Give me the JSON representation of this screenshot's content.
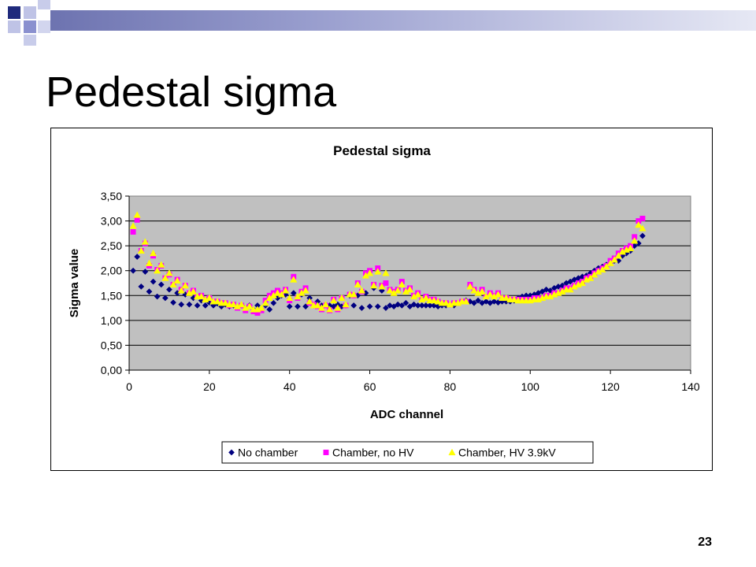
{
  "slide": {
    "title": "Pedestal sigma",
    "page_number": "23"
  },
  "chart_data": {
    "type": "scatter",
    "title": "Pedestal sigma",
    "xlabel": "ADC channel",
    "ylabel": "Sigma value",
    "xlim": [
      0,
      140
    ],
    "ylim": [
      0,
      3.5
    ],
    "x_ticks": [
      "0",
      "20",
      "40",
      "60",
      "80",
      "100",
      "120",
      "140"
    ],
    "y_ticks": [
      "0,00",
      "0,50",
      "1,00",
      "1,50",
      "2,00",
      "2,50",
      "3,00",
      "3,50"
    ],
    "plot_background": "#C0C0C0",
    "grid": "horizontal",
    "legend_position": "bottom",
    "series": [
      {
        "name": "No chamber",
        "marker": "diamond",
        "color": "#000080",
        "x": [
          1,
          2,
          3,
          4,
          5,
          6,
          7,
          8,
          9,
          10,
          11,
          12,
          13,
          14,
          15,
          16,
          17,
          18,
          19,
          20,
          21,
          22,
          23,
          24,
          25,
          26,
          27,
          28,
          29,
          30,
          31,
          32,
          33,
          34,
          35,
          36,
          37,
          38,
          39,
          40,
          41,
          42,
          43,
          44,
          45,
          46,
          47,
          48,
          49,
          50,
          51,
          52,
          53,
          54,
          55,
          56,
          57,
          58,
          59,
          60,
          61,
          62,
          63,
          64,
          65,
          66,
          67,
          68,
          69,
          70,
          71,
          72,
          73,
          74,
          75,
          76,
          77,
          78,
          79,
          80,
          81,
          82,
          83,
          84,
          85,
          86,
          87,
          88,
          89,
          90,
          91,
          92,
          93,
          94,
          95,
          96,
          97,
          98,
          99,
          100,
          101,
          102,
          103,
          104,
          105,
          106,
          107,
          108,
          109,
          110,
          111,
          112,
          113,
          114,
          115,
          116,
          117,
          118,
          119,
          120,
          121,
          122,
          123,
          124,
          125,
          126,
          127,
          128
        ],
        "y": [
          2.0,
          2.28,
          1.68,
          1.98,
          1.58,
          1.78,
          1.48,
          1.72,
          1.45,
          1.62,
          1.36,
          1.55,
          1.32,
          1.52,
          1.32,
          1.45,
          1.3,
          1.4,
          1.3,
          1.36,
          1.3,
          1.34,
          1.28,
          1.32,
          1.28,
          1.3,
          1.26,
          1.3,
          1.25,
          1.3,
          1.22,
          1.3,
          1.22,
          1.3,
          1.22,
          1.35,
          1.45,
          1.5,
          1.52,
          1.28,
          1.55,
          1.28,
          1.52,
          1.28,
          1.45,
          1.3,
          1.38,
          1.3,
          1.32,
          1.3,
          1.28,
          1.32,
          1.28,
          1.3,
          1.5,
          1.3,
          1.5,
          1.25,
          1.55,
          1.28,
          1.65,
          1.28,
          1.6,
          1.25,
          1.3,
          1.28,
          1.32,
          1.3,
          1.35,
          1.28,
          1.32,
          1.3,
          1.3,
          1.3,
          1.3,
          1.3,
          1.28,
          1.3,
          1.3,
          1.32,
          1.3,
          1.35,
          1.38,
          1.4,
          1.38,
          1.35,
          1.4,
          1.35,
          1.38,
          1.35,
          1.38,
          1.36,
          1.38,
          1.38,
          1.38,
          1.4,
          1.45,
          1.48,
          1.5,
          1.5,
          1.52,
          1.55,
          1.58,
          1.62,
          1.6,
          1.65,
          1.68,
          1.7,
          1.75,
          1.78,
          1.82,
          1.85,
          1.88,
          1.9,
          1.95,
          2.0,
          2.05,
          2.08,
          2.12,
          2.15,
          2.2,
          2.2,
          2.3,
          2.35,
          2.4,
          2.5,
          2.55,
          2.7
        ]
      },
      {
        "name": "Chamber, no HV",
        "marker": "square",
        "color": "#FF00FF",
        "x": [
          1,
          2,
          3,
          4,
          5,
          6,
          7,
          8,
          9,
          10,
          11,
          12,
          13,
          14,
          15,
          16,
          17,
          18,
          19,
          20,
          21,
          22,
          23,
          24,
          25,
          26,
          27,
          28,
          29,
          30,
          31,
          32,
          33,
          34,
          35,
          36,
          37,
          38,
          39,
          40,
          41,
          42,
          43,
          44,
          45,
          46,
          47,
          48,
          49,
          50,
          51,
          52,
          53,
          54,
          55,
          56,
          57,
          58,
          59,
          60,
          61,
          62,
          63,
          64,
          65,
          66,
          67,
          68,
          69,
          70,
          71,
          72,
          73,
          74,
          75,
          76,
          77,
          78,
          79,
          80,
          81,
          82,
          83,
          84,
          85,
          86,
          87,
          88,
          89,
          90,
          91,
          92,
          93,
          94,
          95,
          96,
          97,
          98,
          99,
          100,
          101,
          102,
          103,
          104,
          105,
          106,
          107,
          108,
          109,
          110,
          111,
          112,
          113,
          114,
          115,
          116,
          117,
          118,
          119,
          120,
          121,
          122,
          123,
          124,
          125,
          126,
          127,
          128
        ],
        "y": [
          2.78,
          3.02,
          2.4,
          2.55,
          2.1,
          2.3,
          2.02,
          2.1,
          1.85,
          1.92,
          1.72,
          1.82,
          1.62,
          1.7,
          1.55,
          1.6,
          1.48,
          1.5,
          1.42,
          1.45,
          1.38,
          1.38,
          1.35,
          1.35,
          1.3,
          1.32,
          1.25,
          1.3,
          1.2,
          1.28,
          1.18,
          1.15,
          1.2,
          1.4,
          1.5,
          1.55,
          1.6,
          1.55,
          1.62,
          1.4,
          1.88,
          1.45,
          1.58,
          1.65,
          1.35,
          1.32,
          1.28,
          1.22,
          1.3,
          1.2,
          1.42,
          1.22,
          1.45,
          1.3,
          1.52,
          1.5,
          1.75,
          1.58,
          1.95,
          2.0,
          1.72,
          2.05,
          1.7,
          1.75,
          1.62,
          1.58,
          1.62,
          1.78,
          1.6,
          1.65,
          1.5,
          1.55,
          1.42,
          1.48,
          1.42,
          1.42,
          1.38,
          1.35,
          1.35,
          1.32,
          1.35,
          1.35,
          1.38,
          1.38,
          1.72,
          1.62,
          1.55,
          1.62,
          1.48,
          1.55,
          1.5,
          1.55,
          1.45,
          1.45,
          1.42,
          1.42,
          1.42,
          1.42,
          1.42,
          1.42,
          1.45,
          1.45,
          1.45,
          1.5,
          1.5,
          1.55,
          1.55,
          1.6,
          1.65,
          1.65,
          1.7,
          1.75,
          1.78,
          1.85,
          1.88,
          1.95,
          2.0,
          2.05,
          2.1,
          2.2,
          2.25,
          2.35,
          2.4,
          2.45,
          2.5,
          2.68,
          3.0,
          3.05
        ]
      },
      {
        "name": "Chamber, HV 3.9kV",
        "marker": "triangle",
        "color": "#FFFF00",
        "x": [
          1,
          2,
          3,
          4,
          5,
          6,
          7,
          8,
          9,
          10,
          11,
          12,
          13,
          14,
          15,
          16,
          17,
          18,
          19,
          20,
          21,
          22,
          23,
          24,
          25,
          26,
          27,
          28,
          29,
          30,
          31,
          32,
          33,
          34,
          35,
          36,
          37,
          38,
          39,
          40,
          41,
          42,
          43,
          44,
          45,
          46,
          47,
          48,
          49,
          50,
          51,
          52,
          53,
          54,
          55,
          56,
          57,
          58,
          59,
          60,
          61,
          62,
          63,
          64,
          65,
          66,
          67,
          68,
          69,
          70,
          71,
          72,
          73,
          74,
          75,
          76,
          77,
          78,
          79,
          80,
          81,
          82,
          83,
          84,
          85,
          86,
          87,
          88,
          89,
          90,
          91,
          92,
          93,
          94,
          95,
          96,
          97,
          98,
          99,
          100,
          101,
          102,
          103,
          104,
          105,
          106,
          107,
          108,
          109,
          110,
          111,
          112,
          113,
          114,
          115,
          116,
          117,
          118,
          119,
          120,
          121,
          122,
          123,
          124,
          125,
          126,
          127,
          128
        ],
        "y": [
          2.9,
          3.12,
          2.4,
          2.58,
          2.15,
          2.35,
          2.0,
          2.12,
          1.85,
          1.95,
          1.72,
          1.8,
          1.6,
          1.7,
          1.55,
          1.58,
          1.48,
          1.48,
          1.42,
          1.45,
          1.38,
          1.38,
          1.35,
          1.35,
          1.32,
          1.32,
          1.28,
          1.32,
          1.25,
          1.28,
          1.22,
          1.22,
          1.25,
          1.35,
          1.45,
          1.5,
          1.55,
          1.52,
          1.6,
          1.45,
          1.82,
          1.48,
          1.55,
          1.6,
          1.38,
          1.3,
          1.3,
          1.25,
          1.32,
          1.22,
          1.4,
          1.25,
          1.45,
          1.32,
          1.52,
          1.52,
          1.72,
          1.6,
          1.9,
          1.95,
          1.7,
          1.98,
          1.68,
          1.95,
          1.6,
          1.55,
          1.6,
          1.72,
          1.58,
          1.62,
          1.48,
          1.52,
          1.42,
          1.45,
          1.4,
          1.4,
          1.38,
          1.35,
          1.35,
          1.32,
          1.35,
          1.35,
          1.38,
          1.38,
          1.68,
          1.6,
          1.55,
          1.58,
          1.48,
          1.52,
          1.48,
          1.52,
          1.45,
          1.45,
          1.42,
          1.42,
          1.4,
          1.4,
          1.4,
          1.4,
          1.42,
          1.42,
          1.45,
          1.48,
          1.48,
          1.52,
          1.55,
          1.58,
          1.62,
          1.62,
          1.68,
          1.72,
          1.75,
          1.82,
          1.85,
          1.92,
          1.98,
          2.02,
          2.08,
          2.15,
          2.22,
          2.3,
          2.38,
          2.42,
          2.45,
          2.6,
          2.92,
          2.85
        ]
      }
    ]
  },
  "colors": {
    "accent_dark": "#1F1F7A",
    "accent_mid": "#8C8CC8",
    "accent_light": "#CFD0EC"
  }
}
